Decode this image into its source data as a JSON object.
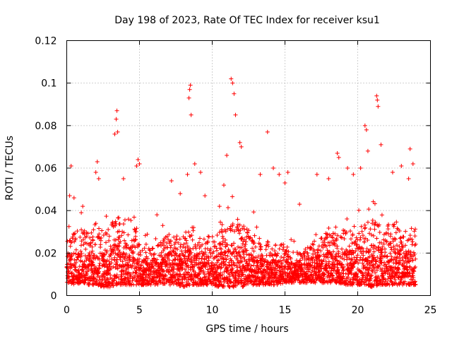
{
  "chart_data": {
    "type": "scatter",
    "title": "Day 198 of 2023, Rate Of TEC Index for receiver ksu1",
    "xlabel": "GPS time / hours",
    "ylabel": "ROTI / TECUs",
    "xlim": [
      0,
      25
    ],
    "ylim": [
      0,
      0.12
    ],
    "xticks": [
      "0",
      "5",
      "10",
      "15",
      "20",
      "25"
    ],
    "yticks": [
      "0",
      "0.02",
      "0.04",
      "0.06",
      "0.08",
      "0.1",
      "0.12"
    ],
    "grid": true,
    "marker": "plus",
    "color": "#ff0000",
    "x_range_observed": [
      0,
      24
    ],
    "points": [
      [
        0.2,
        0.047
      ],
      [
        0.3,
        0.061
      ],
      [
        0.5,
        0.046
      ],
      [
        1.0,
        0.039
      ],
      [
        1.1,
        0.042
      ],
      [
        2.0,
        0.058
      ],
      [
        2.1,
        0.063
      ],
      [
        2.2,
        0.055
      ],
      [
        3.3,
        0.076
      ],
      [
        3.4,
        0.083
      ],
      [
        3.45,
        0.087
      ],
      [
        3.5,
        0.077
      ],
      [
        3.9,
        0.055
      ],
      [
        4.8,
        0.061
      ],
      [
        4.9,
        0.064
      ],
      [
        5.0,
        0.062
      ],
      [
        6.2,
        0.038
      ],
      [
        6.6,
        0.033
      ],
      [
        7.2,
        0.054
      ],
      [
        7.8,
        0.048
      ],
      [
        8.3,
        0.057
      ],
      [
        8.4,
        0.093
      ],
      [
        8.45,
        0.097
      ],
      [
        8.5,
        0.099
      ],
      [
        8.55,
        0.085
      ],
      [
        8.8,
        0.062
      ],
      [
        9.2,
        0.058
      ],
      [
        9.5,
        0.047
      ],
      [
        10.5,
        0.042
      ],
      [
        10.8,
        0.052
      ],
      [
        11.0,
        0.066
      ],
      [
        11.3,
        0.102
      ],
      [
        11.4,
        0.1
      ],
      [
        11.5,
        0.095
      ],
      [
        11.6,
        0.085
      ],
      [
        11.9,
        0.072
      ],
      [
        12.0,
        0.07
      ],
      [
        13.3,
        0.057
      ],
      [
        13.8,
        0.077
      ],
      [
        14.2,
        0.06
      ],
      [
        14.6,
        0.057
      ],
      [
        15.0,
        0.053
      ],
      [
        15.2,
        0.058
      ],
      [
        16.0,
        0.043
      ],
      [
        17.2,
        0.057
      ],
      [
        18.0,
        0.055
      ],
      [
        18.6,
        0.067
      ],
      [
        18.7,
        0.065
      ],
      [
        19.3,
        0.06
      ],
      [
        19.7,
        0.057
      ],
      [
        20.2,
        0.06
      ],
      [
        20.5,
        0.08
      ],
      [
        20.6,
        0.078
      ],
      [
        20.7,
        0.068
      ],
      [
        21.3,
        0.094
      ],
      [
        21.35,
        0.092
      ],
      [
        21.4,
        0.089
      ],
      [
        21.6,
        0.071
      ],
      [
        22.4,
        0.058
      ],
      [
        23.0,
        0.061
      ],
      [
        23.5,
        0.055
      ],
      [
        23.6,
        0.069
      ],
      [
        23.8,
        0.062
      ]
    ],
    "envelope": {
      "hours": [
        0,
        0.5,
        1,
        1.5,
        2,
        2.5,
        3,
        3.5,
        4,
        4.5,
        5,
        5.5,
        6,
        6.5,
        7,
        7.5,
        8,
        8.5,
        9,
        9.5,
        10,
        10.5,
        11,
        11.5,
        12,
        12.5,
        13,
        13.5,
        14,
        14.5,
        15,
        15.5,
        16,
        16.5,
        17,
        17.5,
        18,
        18.5,
        19,
        19.5,
        20,
        20.5,
        21,
        21.5,
        22,
        22.5,
        23,
        23.5,
        24
      ],
      "upper": [
        0.03,
        0.03,
        0.032,
        0.03,
        0.034,
        0.03,
        0.034,
        0.038,
        0.036,
        0.036,
        0.026,
        0.024,
        0.022,
        0.026,
        0.03,
        0.028,
        0.032,
        0.034,
        0.03,
        0.028,
        0.028,
        0.03,
        0.034,
        0.036,
        0.036,
        0.03,
        0.028,
        0.026,
        0.026,
        0.024,
        0.024,
        0.022,
        0.02,
        0.024,
        0.026,
        0.028,
        0.03,
        0.032,
        0.032,
        0.032,
        0.034,
        0.034,
        0.036,
        0.036,
        0.034,
        0.034,
        0.032,
        0.032,
        0.03
      ],
      "lower": [
        0.006,
        0.005,
        0.006,
        0.005,
        0.005,
        0.004,
        0.004,
        0.005,
        0.005,
        0.005,
        0.005,
        0.005,
        0.005,
        0.005,
        0.005,
        0.005,
        0.004,
        0.005,
        0.005,
        0.005,
        0.005,
        0.004,
        0.004,
        0.004,
        0.004,
        0.005,
        0.005,
        0.005,
        0.005,
        0.005,
        0.006,
        0.006,
        0.006,
        0.006,
        0.006,
        0.006,
        0.006,
        0.006,
        0.005,
        0.005,
        0.005,
        0.005,
        0.004,
        0.005,
        0.005,
        0.005,
        0.005,
        0.005,
        0.005
      ]
    }
  }
}
